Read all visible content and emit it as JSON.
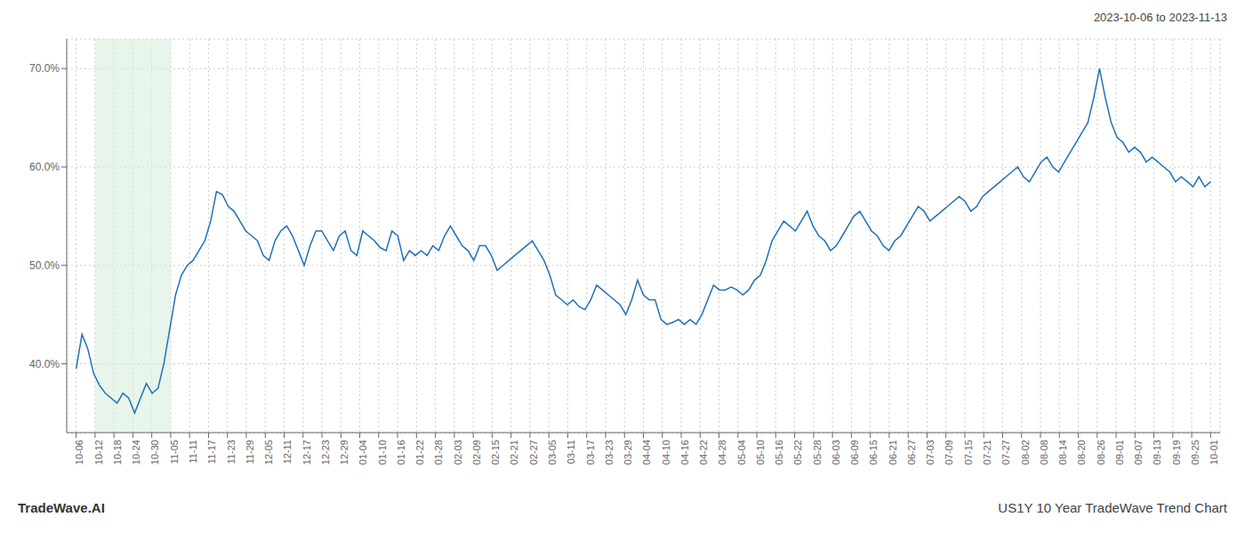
{
  "chart_data": {
    "type": "line",
    "title": "US1Y 10 Year TradeWave Trend Chart",
    "subtitle": "2023-10-06 to 2023-11-13",
    "annotations": [
      "TradeWave.AI"
    ],
    "color": "#2070b8",
    "grid": true,
    "xlim": [
      -0.5,
      60.5
    ],
    "xticks": [
      {
        "value": 0,
        "label": "10-06"
      },
      {
        "value": 1,
        "label": "10-12"
      },
      {
        "value": 2,
        "label": "10-18"
      },
      {
        "value": 3,
        "label": "10-24"
      },
      {
        "value": 4,
        "label": "10-30"
      },
      {
        "value": 5,
        "label": "11-05"
      },
      {
        "value": 6,
        "label": "11-11"
      },
      {
        "value": 7,
        "label": "11-17"
      },
      {
        "value": 8,
        "label": "11-23"
      },
      {
        "value": 9,
        "label": "11-29"
      },
      {
        "value": 10,
        "label": "12-05"
      },
      {
        "value": 11,
        "label": "12-11"
      },
      {
        "value": 12,
        "label": "12-17"
      },
      {
        "value": 13,
        "label": "12-23"
      },
      {
        "value": 14,
        "label": "12-29"
      },
      {
        "value": 15,
        "label": "01-04"
      },
      {
        "value": 16,
        "label": "01-10"
      },
      {
        "value": 17,
        "label": "01-16"
      },
      {
        "value": 18,
        "label": "01-22"
      },
      {
        "value": 19,
        "label": "01-28"
      },
      {
        "value": 20,
        "label": "02-03"
      },
      {
        "value": 21,
        "label": "02-09"
      },
      {
        "value": 22,
        "label": "02-15"
      },
      {
        "value": 23,
        "label": "02-21"
      },
      {
        "value": 24,
        "label": "02-27"
      },
      {
        "value": 25,
        "label": "03-05"
      },
      {
        "value": 26,
        "label": "03-11"
      },
      {
        "value": 27,
        "label": "03-17"
      },
      {
        "value": 28,
        "label": "03-23"
      },
      {
        "value": 29,
        "label": "03-29"
      },
      {
        "value": 30,
        "label": "04-04"
      },
      {
        "value": 31,
        "label": "04-10"
      },
      {
        "value": 32,
        "label": "04-16"
      },
      {
        "value": 33,
        "label": "04-22"
      },
      {
        "value": 34,
        "label": "04-28"
      },
      {
        "value": 35,
        "label": "05-04"
      },
      {
        "value": 36,
        "label": "05-10"
      },
      {
        "value": 37,
        "label": "05-16"
      },
      {
        "value": 38,
        "label": "05-22"
      },
      {
        "value": 39,
        "label": "05-28"
      },
      {
        "value": 40,
        "label": "06-03"
      },
      {
        "value": 41,
        "label": "06-09"
      },
      {
        "value": 42,
        "label": "06-15"
      },
      {
        "value": 43,
        "label": "06-21"
      },
      {
        "value": 44,
        "label": "06-27"
      },
      {
        "value": 45,
        "label": "07-03"
      },
      {
        "value": 46,
        "label": "07-09"
      },
      {
        "value": 47,
        "label": "07-15"
      },
      {
        "value": 48,
        "label": "07-21"
      },
      {
        "value": 49,
        "label": "07-27"
      },
      {
        "value": 50,
        "label": "08-02"
      },
      {
        "value": 51,
        "label": "08-08"
      },
      {
        "value": 52,
        "label": "08-14"
      },
      {
        "value": 53,
        "label": "08-20"
      },
      {
        "value": 54,
        "label": "08-26"
      },
      {
        "value": 55,
        "label": "09-01"
      },
      {
        "value": 56,
        "label": "09-07"
      },
      {
        "value": 57,
        "label": "09-13"
      },
      {
        "value": 58,
        "label": "09-19"
      },
      {
        "value": 59,
        "label": "09-25"
      },
      {
        "value": 60,
        "label": "10-01"
      }
    ],
    "ylim": [
      33,
      73
    ],
    "yticks": [
      {
        "value": 40.0,
        "label": "40.0%"
      },
      {
        "value": 50.0,
        "label": "50.0%"
      },
      {
        "value": 60.0,
        "label": "60.0%"
      },
      {
        "value": 70.0,
        "label": "70.0%"
      }
    ],
    "shaded_span": {
      "from": 1,
      "to": 5,
      "color": "#d4edda"
    },
    "x": [
      0,
      0.3093,
      0.6186,
      0.9278,
      1.2371,
      1.5464,
      1.8557,
      2.1649,
      2.4742,
      2.7835,
      3.0928,
      3.4021,
      3.7113,
      4.0206,
      4.3299,
      4.6392,
      4.9485,
      5.2577,
      5.567,
      5.8763,
      6.1856,
      6.4948,
      6.8041,
      7.1134,
      7.4227,
      7.732,
      8.0412,
      8.3505,
      8.6598,
      8.9691,
      9.2784,
      9.5876,
      9.8969,
      10.2062,
      10.5155,
      10.8247,
      11.134,
      11.4433,
      11.7526,
      12.0619,
      12.3711,
      12.6804,
      12.9897,
      13.299,
      13.6082,
      13.9175,
      14.2268,
      14.5361,
      14.8454,
      15.1546,
      15.4639,
      15.7732,
      16.0825,
      16.3918,
      16.701,
      17.0103,
      17.3196,
      17.6289,
      17.9381,
      18.2474,
      18.5567,
      18.866,
      19.1753,
      19.4845,
      19.7938,
      20.1031,
      20.4124,
      20.7216,
      21.0309,
      21.3402,
      21.6495,
      21.9588,
      22.268,
      22.5773,
      22.8866,
      23.1959,
      23.5052,
      23.8144,
      24.1237,
      24.433,
      24.7423,
      25.0515,
      25.3608,
      25.6701,
      25.9794,
      26.2887,
      26.5979,
      26.9072,
      27.2165,
      27.5258,
      27.8351,
      28.1443,
      28.4536,
      28.7629,
      29.0722,
      29.3814,
      29.6907,
      30,
      30.3093,
      30.6186,
      30.9278,
      31.2371,
      31.5464,
      31.8557,
      32.1649,
      32.4742,
      32.7835,
      33.0928,
      33.4021,
      33.7113,
      34.0206,
      34.3299,
      34.6392,
      34.9485,
      35.2577,
      35.567,
      35.8763,
      36.1856,
      36.4948,
      36.8041,
      37.1134,
      37.4227,
      37.732,
      38.0412,
      38.3505,
      38.6598,
      38.9691,
      39.2784,
      39.5876,
      39.8969,
      40.2062,
      40.5155,
      40.8247,
      41.134,
      41.4433,
      41.7526,
      42.0619,
      42.3711,
      42.6804,
      42.9897,
      43.299,
      43.6082,
      43.9175,
      44.2268,
      44.5361,
      44.8454,
      45.1546,
      45.4639,
      45.7732,
      46.0825,
      46.3918,
      46.701,
      47.0103,
      47.3196,
      47.6289,
      47.9381,
      48.2474,
      48.5567,
      48.866,
      49.1753,
      49.4845,
      49.7938,
      50.1031,
      50.4124,
      50.7216,
      51.0309,
      51.3402,
      51.6495,
      51.9588,
      52.268,
      52.5773,
      52.8866,
      53.1959,
      53.5052,
      53.8144,
      54.1237,
      54.433,
      54.7423,
      55.0515,
      55.3608,
      55.6701,
      55.9794,
      56.2887,
      56.5979,
      56.9072,
      57.2165,
      57.5258,
      57.8351,
      58.1443,
      58.4536,
      58.7629,
      59.0722,
      59.3814,
      59.6907,
      60
    ],
    "values": [
      39.5,
      43.0,
      41.5,
      39.0,
      37.8,
      37.0,
      36.5,
      36.0,
      37.0,
      36.5,
      35.0,
      36.5,
      38.0,
      37.0,
      37.5,
      40.0,
      43.5,
      47.0,
      49.0,
      50.0,
      50.5,
      51.5,
      52.5,
      54.5,
      57.5,
      57.2,
      56.0,
      55.5,
      54.5,
      53.5,
      53.0,
      52.5,
      51.0,
      50.5,
      52.5,
      53.5,
      54.0,
      53.0,
      51.5,
      50.0,
      52.0,
      53.5,
      53.5,
      52.5,
      51.5,
      53.0,
      53.5,
      51.5,
      51.0,
      53.5,
      53.0,
      52.5,
      51.8,
      51.5,
      53.5,
      53.0,
      50.5,
      51.5,
      51.0,
      51.5,
      51.0,
      52.0,
      51.5,
      53.0,
      54.0,
      53.0,
      52.0,
      51.5,
      50.5,
      52.0,
      52.0,
      51.0,
      49.5,
      50.0,
      50.5,
      51.0,
      51.5,
      52.0,
      52.5,
      51.5,
      50.5,
      49.0,
      47.0,
      46.5,
      46.0,
      46.5,
      45.8,
      45.5,
      46.5,
      48.0,
      47.5,
      47.0,
      46.5,
      46.0,
      45.0,
      46.5,
      48.5,
      47.0,
      46.5,
      46.5,
      44.5,
      44.0,
      44.2,
      44.5,
      44.0,
      44.5,
      44.0,
      45.0,
      46.5,
      48.0,
      47.5,
      47.5,
      47.8,
      47.5,
      47.0,
      47.5,
      48.5,
      49.0,
      50.5,
      52.5,
      53.5,
      54.5,
      54.0,
      53.5,
      54.5,
      55.5,
      54.0,
      53.0,
      52.5,
      51.5,
      52.0,
      53.0,
      54.0,
      55.0,
      55.5,
      54.5,
      53.5,
      53.0,
      52.0,
      51.5,
      52.5,
      53.0,
      54.0,
      55.0,
      56.0,
      55.5,
      54.5,
      55.0,
      55.5,
      56.0,
      56.5,
      57.0,
      56.5,
      55.5,
      56.0,
      57.0,
      57.5,
      58.0,
      58.5,
      59.0,
      59.5,
      60.0,
      59.0,
      58.5,
      59.5,
      60.5,
      61.0,
      60.0,
      59.5,
      60.5,
      61.5,
      62.5,
      63.5,
      64.5,
      67.0,
      70.0,
      67.0,
      64.5,
      63.0,
      62.5,
      61.5,
      62.0,
      61.5,
      60.5,
      61.0,
      60.5,
      60.0,
      59.5,
      58.5,
      59.0,
      58.5,
      58.0,
      59.0,
      58.0,
      58.5
    ]
  }
}
